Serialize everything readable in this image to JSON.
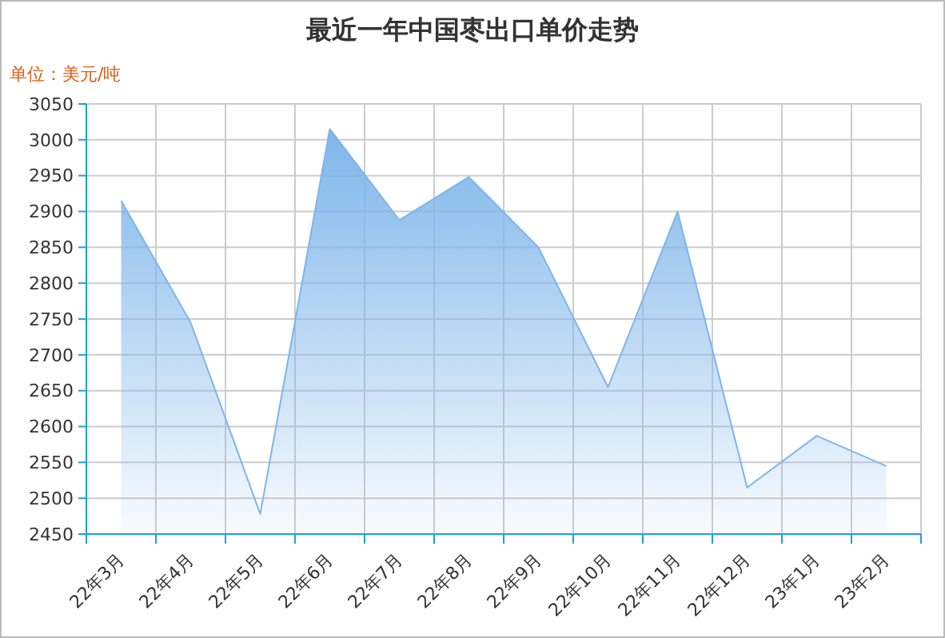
{
  "chart_data": {
    "type": "area",
    "title": "最近一年中国枣出口单价走势",
    "ylabel": "单位：美元/吨",
    "categories": [
      "22年3月",
      "22年4月",
      "22年5月",
      "22年6月",
      "22年7月",
      "22年8月",
      "22年9月",
      "22年10月",
      "22年11月",
      "22年12月",
      "23年1月",
      "23年2月"
    ],
    "series": [
      {
        "color": "#7eb5ea",
        "values": [
          2915,
          2745,
          2478,
          3015,
          2888,
          2948,
          2850,
          2655,
          2900,
          2515,
          2587,
          2545
        ]
      }
    ],
    "ylim": [
      2450,
      3050
    ],
    "yticks": [
      2450,
      2500,
      2550,
      2600,
      2650,
      2700,
      2750,
      2800,
      2850,
      2900,
      2950,
      3000,
      3050
    ],
    "grid": true,
    "marker": "none"
  }
}
